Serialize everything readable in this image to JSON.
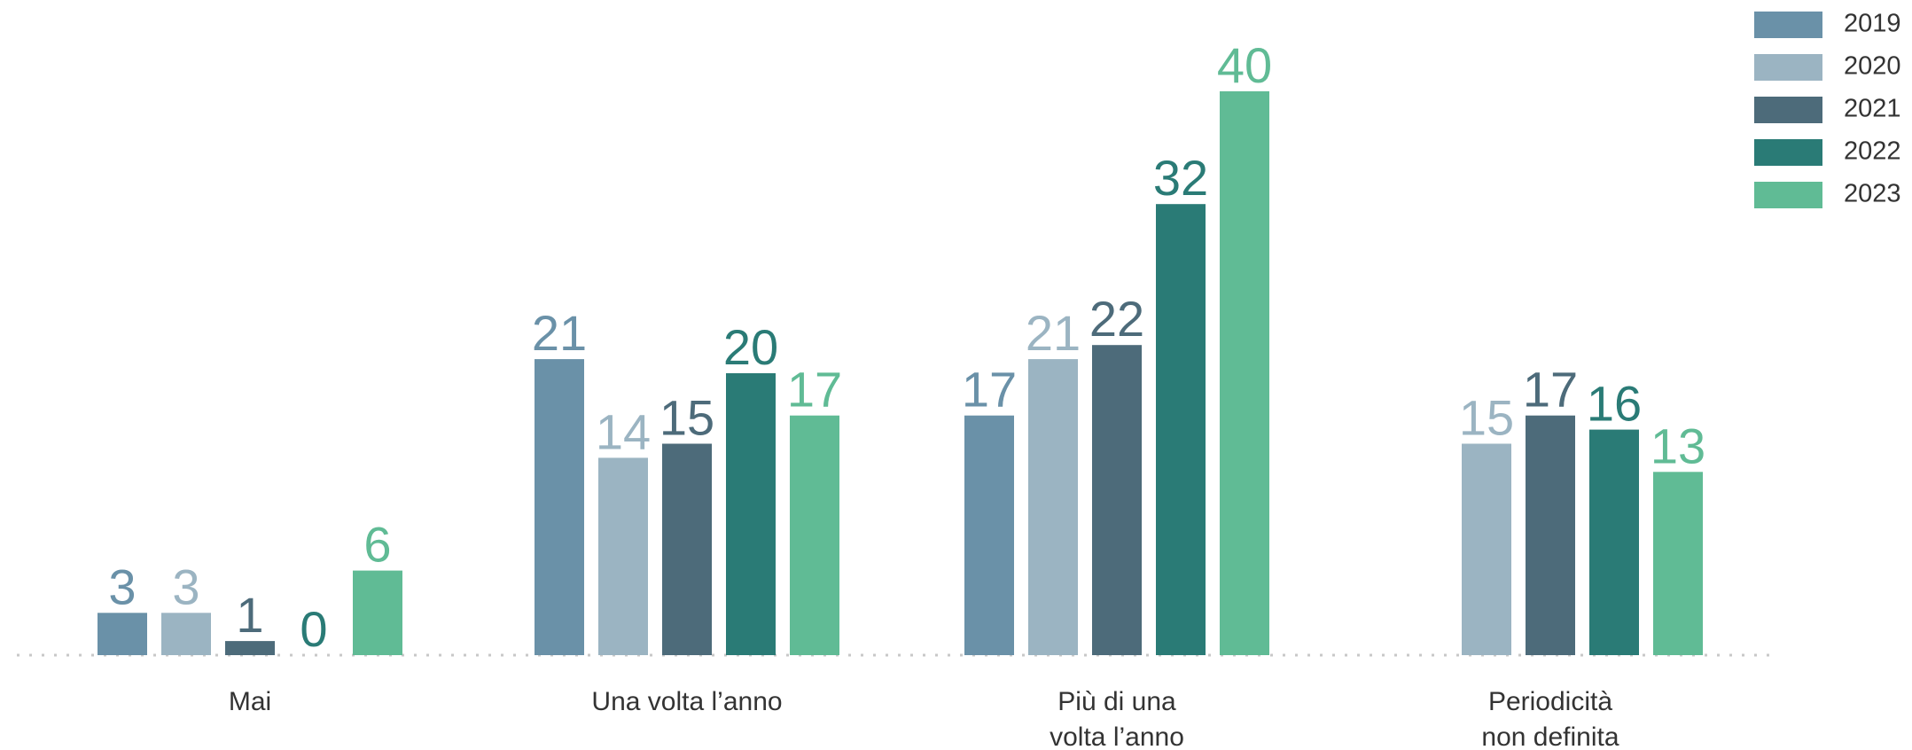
{
  "chart_data": {
    "type": "bar",
    "categories": [
      "Mai",
      "Una volta l’anno",
      "Più di una\nvolta l’anno",
      "Periodicità\nnon definita"
    ],
    "series": [
      {
        "name": "2019",
        "color": "#6a91a8",
        "values": [
          3,
          21,
          17,
          null
        ]
      },
      {
        "name": "2020",
        "color": "#9bb4c2",
        "values": [
          3,
          14,
          21,
          15
        ]
      },
      {
        "name": "2021",
        "color": "#4d6b7a",
        "values": [
          1,
          15,
          22,
          17
        ]
      },
      {
        "name": "2022",
        "color": "#2a7b76",
        "values": [
          0,
          20,
          32,
          16
        ]
      },
      {
        "name": "2023",
        "color": "#60bb95",
        "values": [
          6,
          17,
          40,
          13
        ]
      }
    ],
    "legend": "top-right"
  }
}
